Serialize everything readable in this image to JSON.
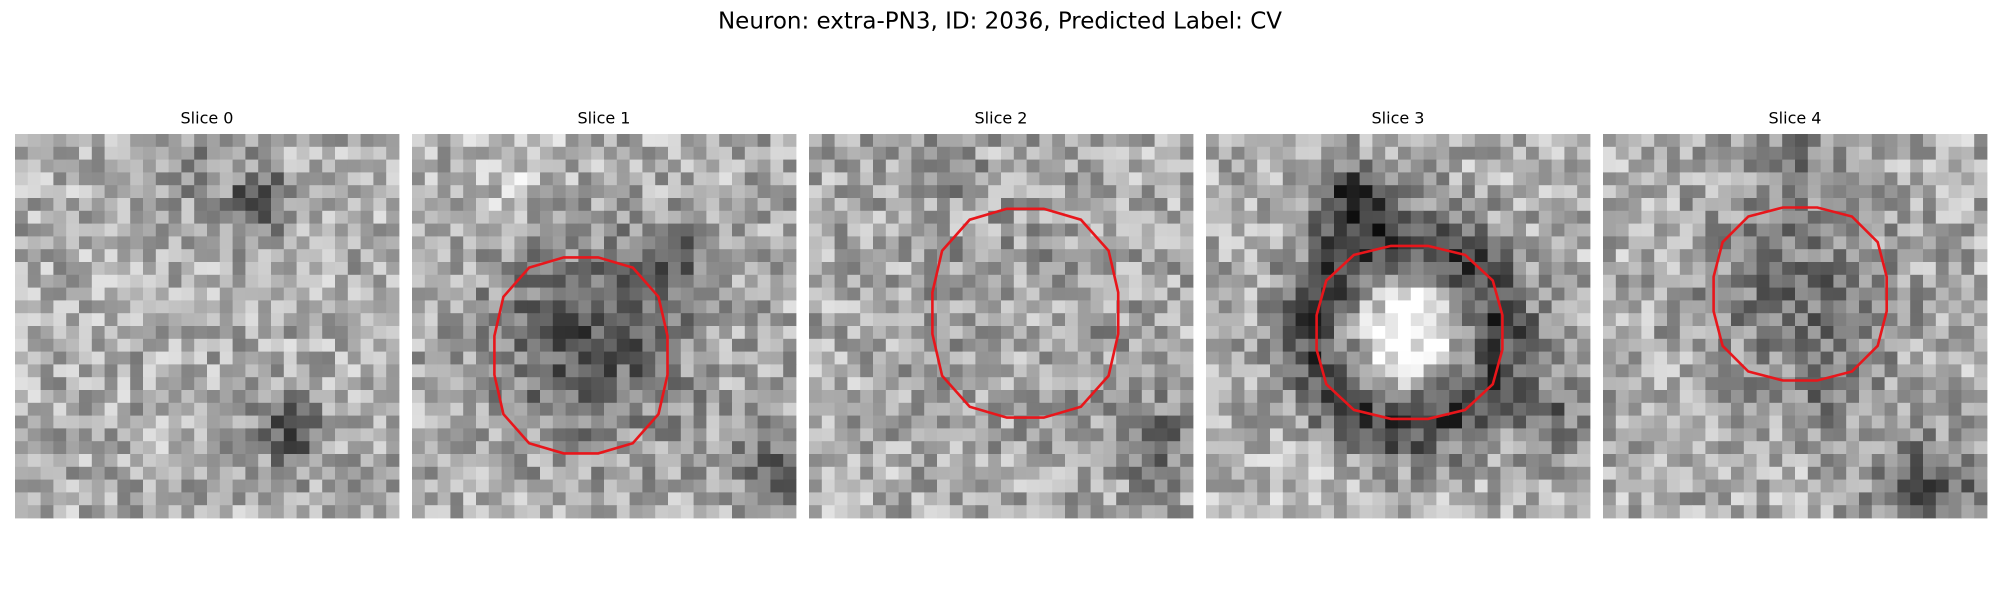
{
  "header": {
    "title": "Neuron: extra-PN3, ID: 2036, Predicted Label: CV"
  },
  "panels": [
    {
      "title": "Slice 0"
    },
    {
      "title": "Slice 1"
    },
    {
      "title": "Slice 2"
    },
    {
      "title": "Slice 3"
    },
    {
      "title": "Slice 4"
    }
  ]
}
